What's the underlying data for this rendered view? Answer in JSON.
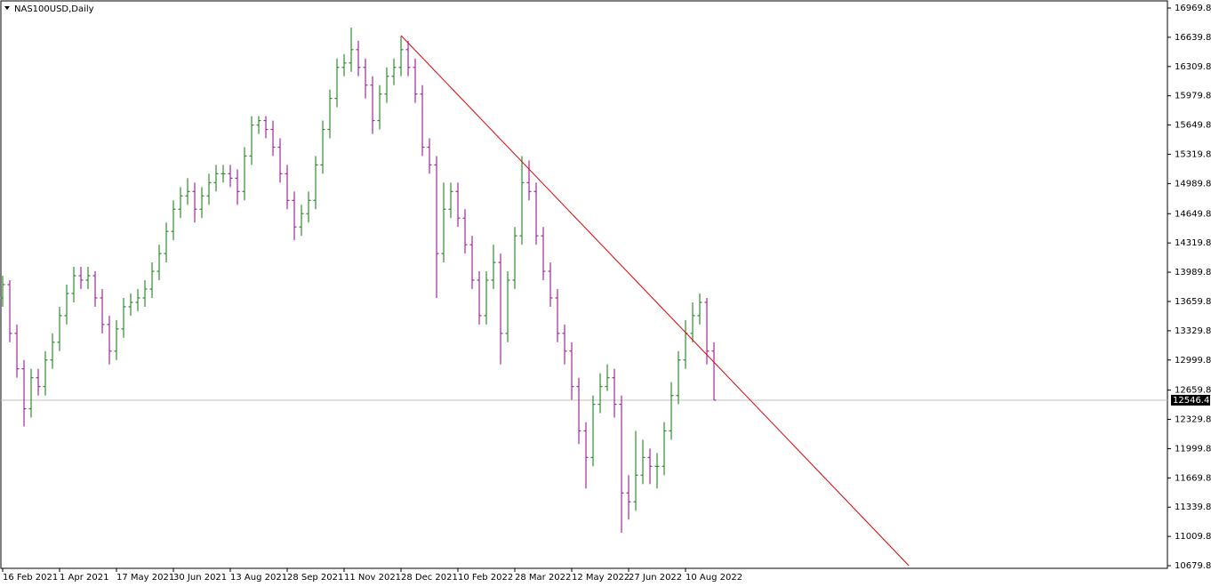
{
  "chart_data": {
    "type": "ohlc",
    "title": "NAS100USD,Daily",
    "categories": [
      "16 Feb 2021",
      null,
      null,
      null,
      null,
      null,
      null,
      null,
      "1 Apr 2021",
      null,
      null,
      null,
      null,
      null,
      null,
      null,
      "17 May 2021",
      null,
      null,
      null,
      null,
      null,
      null,
      null,
      "30 Jun 2021",
      null,
      null,
      null,
      null,
      null,
      null,
      null,
      "13 Aug 2021",
      null,
      null,
      null,
      null,
      null,
      null,
      null,
      "28 Sep 2021",
      null,
      null,
      null,
      null,
      null,
      null,
      null,
      "11 Nov 2021",
      null,
      null,
      null,
      null,
      null,
      null,
      null,
      "28 Dec 2021",
      null,
      null,
      null,
      null,
      null,
      null,
      null,
      "10 Feb 2022",
      null,
      null,
      null,
      null,
      null,
      null,
      null,
      "28 Mar 2022",
      null,
      null,
      null,
      null,
      null,
      null,
      null,
      "12 May 2022",
      null,
      null,
      null,
      null,
      null,
      null,
      null,
      "27 Jun 2022",
      null,
      null,
      null,
      null,
      null,
      null,
      null,
      "10 Aug 2022",
      null,
      null,
      null,
      null
    ],
    "open": [
      13700,
      13850,
      13300,
      12900,
      12450,
      12800,
      12700,
      13000,
      13200,
      13500,
      13750,
      13950,
      13900,
      13950,
      13700,
      13400,
      13100,
      13350,
      13600,
      13650,
      13700,
      13800,
      14000,
      14200,
      14450,
      14700,
      14850,
      14900,
      14700,
      14850,
      15000,
      15100,
      15100,
      15050,
      14900,
      15300,
      15650,
      15700,
      15600,
      15400,
      15100,
      14800,
      14500,
      14650,
      14800,
      15200,
      15600,
      15950,
      16300,
      16350,
      16500,
      16300,
      16100,
      15700,
      16000,
      16200,
      16300,
      16500,
      16300,
      16000,
      15400,
      15200,
      14200,
      14700,
      14900,
      14600,
      14300,
      13900,
      13500,
      13900,
      14100,
      13300,
      13900,
      14400,
      15000,
      14900,
      14400,
      14000,
      13700,
      13300,
      13100,
      12700,
      12200,
      11900,
      12500,
      12700,
      12800,
      12500,
      11500,
      11400,
      11700,
      11900,
      11800,
      11800,
      12200,
      12600,
      13000,
      13300,
      13500,
      13650,
      13100
    ],
    "high": [
      13950,
      13900,
      13400,
      13000,
      12900,
      12900,
      13100,
      13300,
      13600,
      13850,
      14050,
      14050,
      14050,
      14000,
      13800,
      13500,
      13450,
      13700,
      13750,
      13800,
      13900,
      14100,
      14300,
      14550,
      14800,
      14950,
      15050,
      15000,
      14950,
      15100,
      15200,
      15200,
      15200,
      15150,
      15400,
      15750,
      15750,
      15750,
      15700,
      15500,
      15200,
      14900,
      14750,
      14900,
      15300,
      15700,
      16050,
      16400,
      16450,
      16750,
      16600,
      16400,
      16200,
      16100,
      16300,
      16400,
      16650,
      16600,
      16400,
      16100,
      15500,
      15300,
      15000,
      15000,
      15000,
      14700,
      14400,
      14000,
      14000,
      14300,
      14200,
      14000,
      14500,
      15300,
      15250,
      15000,
      14500,
      14100,
      13800,
      13400,
      13200,
      12800,
      12300,
      12600,
      12850,
      12950,
      12900,
      12600,
      11700,
      12200,
      12100,
      12000,
      11950,
      12300,
      12750,
      13100,
      13450,
      13650,
      13750,
      13700,
      13200
    ],
    "low": [
      13600,
      13200,
      12800,
      12250,
      12350,
      12600,
      12600,
      12900,
      13100,
      13400,
      13650,
      13800,
      13800,
      13600,
      13300,
      12950,
      13000,
      13250,
      13500,
      13550,
      13600,
      13700,
      13900,
      14100,
      14350,
      14600,
      14750,
      14550,
      14600,
      14750,
      14900,
      15000,
      14950,
      14750,
      14800,
      15200,
      15550,
      15500,
      15300,
      15000,
      14700,
      14350,
      14400,
      14550,
      14700,
      15100,
      15500,
      15850,
      16200,
      16250,
      16200,
      15950,
      15550,
      15600,
      15900,
      16100,
      16200,
      16200,
      15900,
      15300,
      15100,
      13700,
      14100,
      14600,
      14500,
      14200,
      13800,
      13400,
      13400,
      13800,
      12950,
      13200,
      13800,
      14300,
      14800,
      14300,
      13900,
      13600,
      13200,
      12950,
      12550,
      12050,
      11550,
      11800,
      12400,
      12650,
      12350,
      11050,
      11200,
      11300,
      11600,
      11600,
      11550,
      11700,
      12100,
      12500,
      12900,
      13200,
      13400,
      12950,
      12546.4
    ],
    "close": [
      13850,
      13300,
      12900,
      12450,
      12800,
      12700,
      13000,
      13200,
      13500,
      13750,
      13950,
      13900,
      13950,
      13700,
      13400,
      13100,
      13350,
      13600,
      13650,
      13700,
      13800,
      14000,
      14200,
      14450,
      14700,
      14850,
      14900,
      14700,
      14850,
      15000,
      15100,
      15100,
      15050,
      14900,
      15300,
      15650,
      15700,
      15600,
      15400,
      15100,
      14800,
      14500,
      14650,
      14800,
      15200,
      15600,
      15950,
      16300,
      16350,
      16500,
      16300,
      16100,
      15700,
      16000,
      16200,
      16300,
      16500,
      16300,
      16000,
      15400,
      15200,
      14200,
      14700,
      14900,
      14600,
      14300,
      13900,
      13500,
      13900,
      14100,
      13300,
      13900,
      14400,
      15000,
      14900,
      14400,
      14000,
      13700,
      13300,
      13100,
      12700,
      12200,
      11900,
      12500,
      12700,
      12800,
      12500,
      11500,
      11400,
      11700,
      11900,
      11800,
      11800,
      12200,
      12600,
      13000,
      13300,
      13500,
      13650,
      13100,
      12546.4
    ],
    "up_color": "#2e8b2e",
    "down_color": "#a3289c",
    "last_price": 12546.4,
    "last_price_color": "#c0c0c0",
    "trendline": {
      "color": "#e00000",
      "x": [
        56,
        127.4
      ],
      "y": [
        16660,
        10679.8
      ]
    },
    "ylim": [
      10650,
      17050
    ],
    "yticks": [
      16969.8,
      16639.8,
      16309.8,
      15979.8,
      15649.8,
      15319.8,
      14989.8,
      14649.8,
      14319.8,
      13989.8,
      13659.8,
      13329.8,
      12999.8,
      12659.8,
      12329.8,
      11999.8,
      11669.8,
      11339.8,
      11009.8,
      10679.8
    ]
  }
}
